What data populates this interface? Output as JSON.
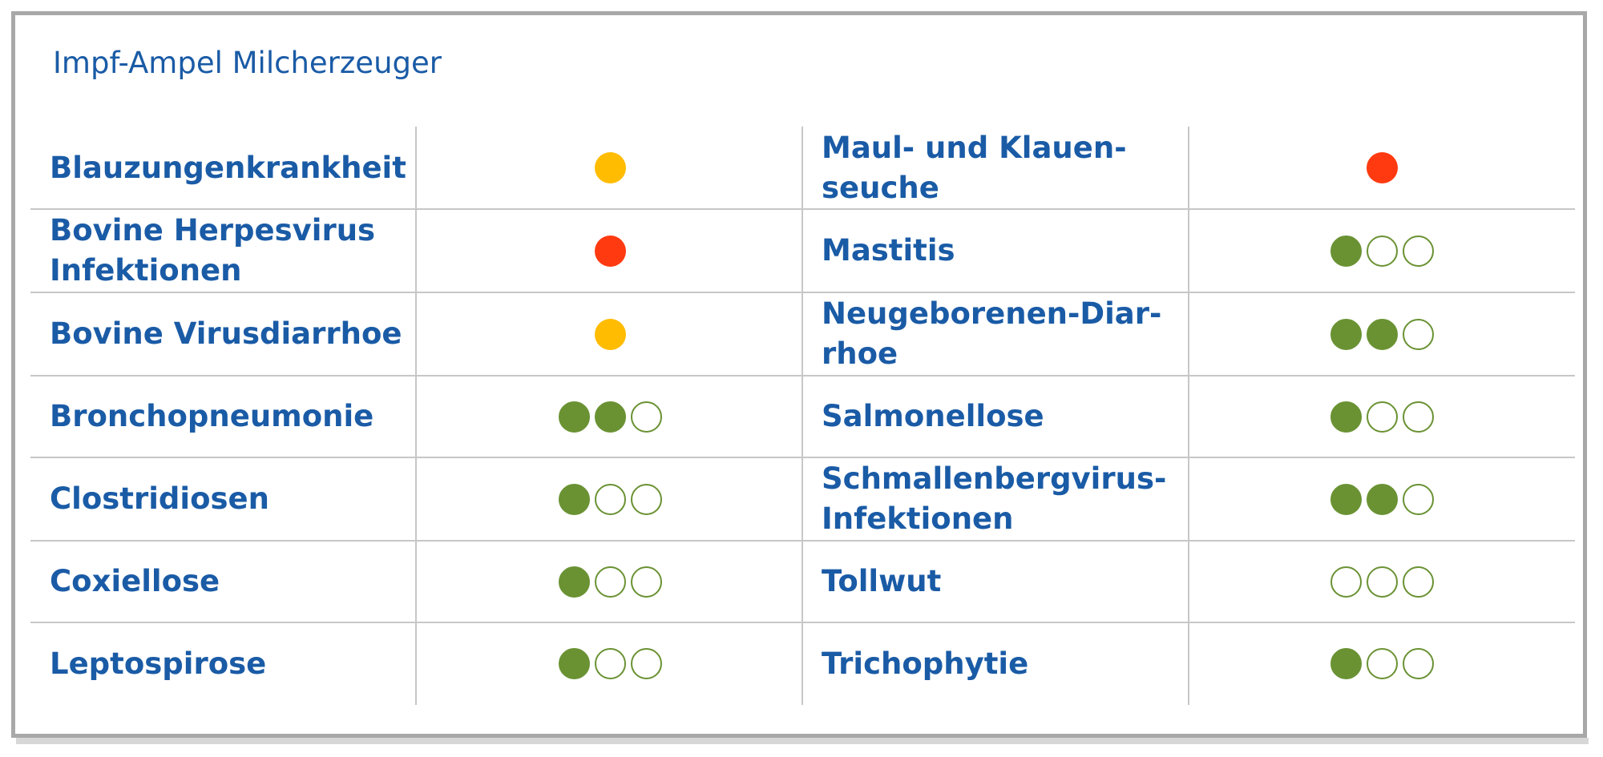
{
  "title": "Impf-Ampel Milcherzeuger",
  "colors": {
    "text": "#1a5ba6",
    "green": "#6a9233",
    "yellow": "#ffbc00",
    "red": "#ff3a10",
    "border": "#a8a8a8"
  },
  "left": [
    {
      "label": [
        "Blauzungenkrankheit"
      ],
      "status": "yellow"
    },
    {
      "label": [
        "Bovine Herpesvirus",
        "Infektionen"
      ],
      "status": "red"
    },
    {
      "label": [
        "Bovine Virusdiarrhoe"
      ],
      "status": "yellow"
    },
    {
      "label": [
        "Bronchopneumonie"
      ],
      "status": "green",
      "filled": 2,
      "of": 3
    },
    {
      "label": [
        "Clostridiosen"
      ],
      "status": "green",
      "filled": 1,
      "of": 3
    },
    {
      "label": [
        "Coxiellose"
      ],
      "status": "green",
      "filled": 1,
      "of": 3
    },
    {
      "label": [
        "Leptospirose"
      ],
      "status": "green",
      "filled": 1,
      "of": 3
    }
  ],
  "right": [
    {
      "label": [
        "Maul- und Klauen-",
        "seuche"
      ],
      "status": "red"
    },
    {
      "label": [
        "Mastitis"
      ],
      "status": "green",
      "filled": 1,
      "of": 3
    },
    {
      "label": [
        "Neugeborenen-Diar-",
        "rhoe"
      ],
      "status": "green",
      "filled": 2,
      "of": 3
    },
    {
      "label": [
        "Salmonellose"
      ],
      "status": "green",
      "filled": 1,
      "of": 3
    },
    {
      "label": [
        "Schmallenbergvirus-",
        "Infektionen"
      ],
      "status": "green",
      "filled": 2,
      "of": 3
    },
    {
      "label": [
        "Tollwut"
      ],
      "status": "green",
      "filled": 0,
      "of": 3
    },
    {
      "label": [
        "Trichophytie"
      ],
      "status": "green",
      "filled": 1,
      "of": 3
    }
  ]
}
